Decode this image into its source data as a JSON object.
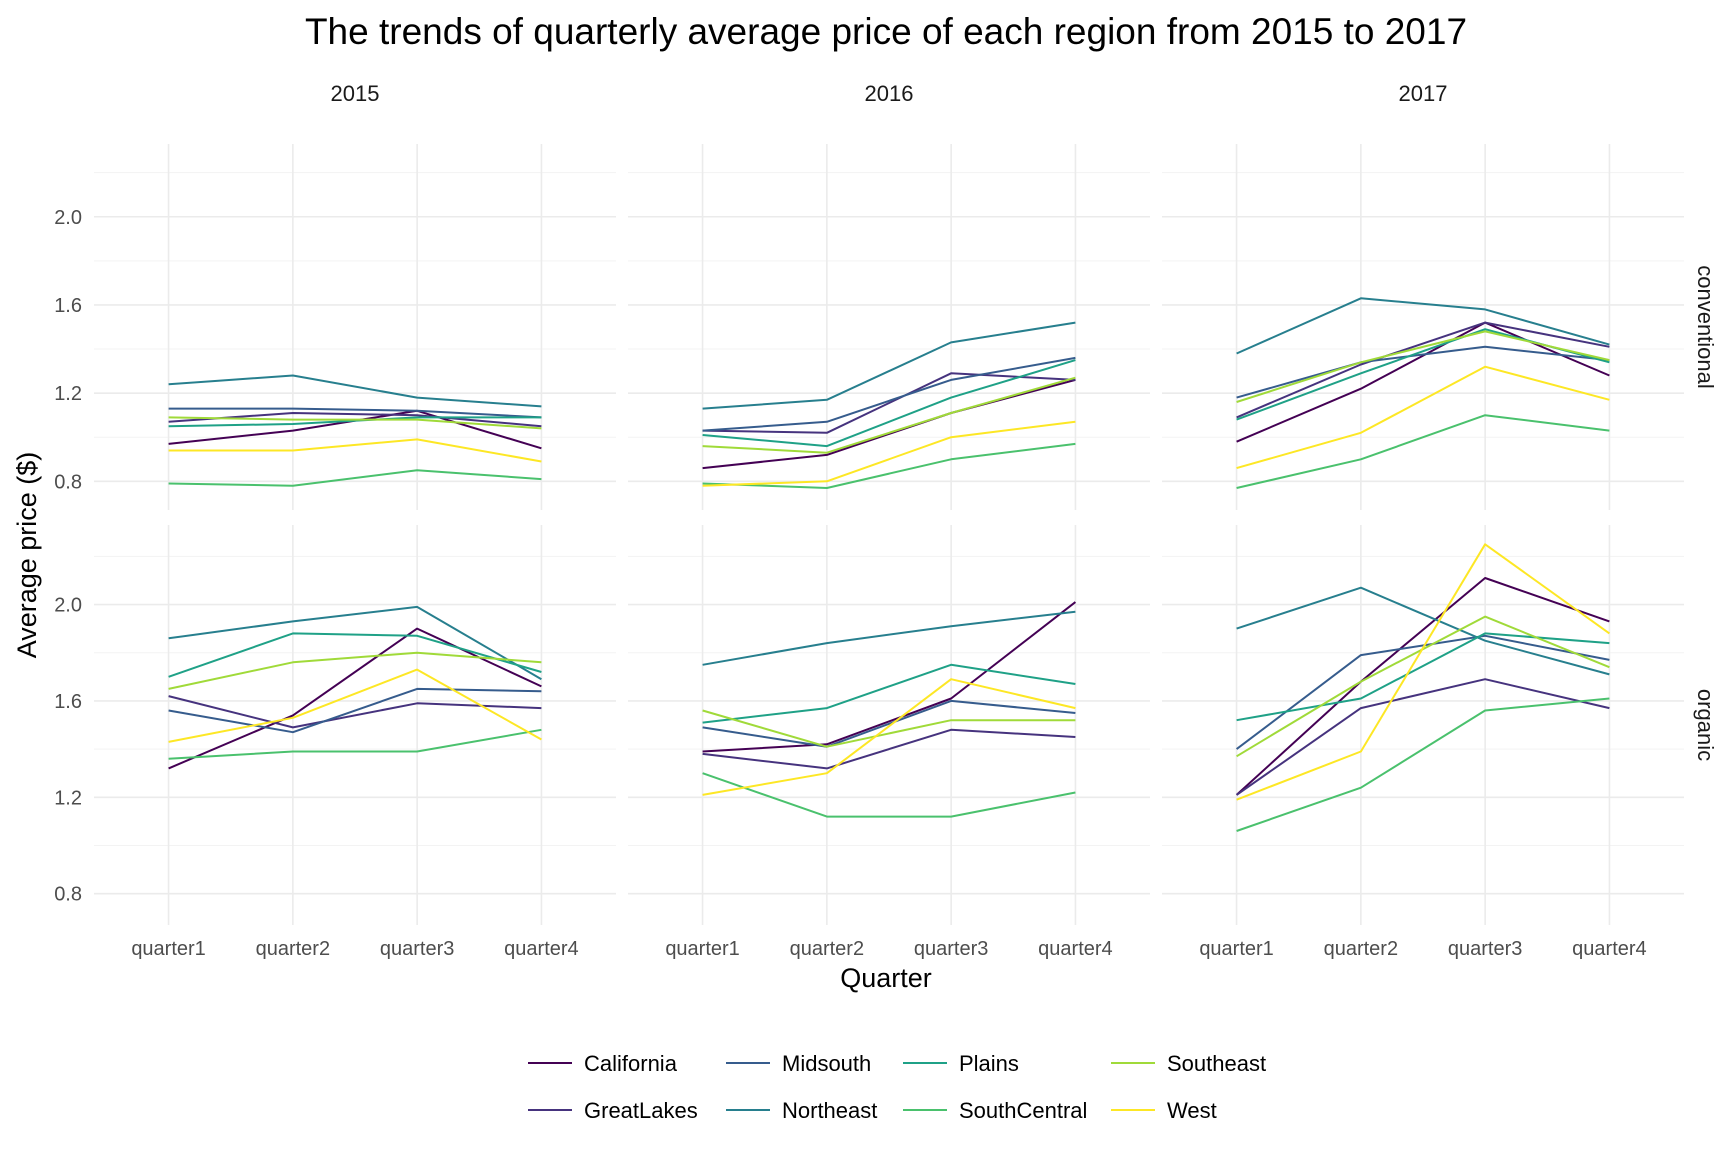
{
  "chart_data": {
    "type": "line",
    "title": "The trends of quarterly average price of each region from 2015 to 2017",
    "xlabel": "Quarter",
    "ylabel": "Average price ($)",
    "x_categories": [
      "quarter1",
      "quarter2",
      "quarter3",
      "quarter4"
    ],
    "facet_columns": [
      "2015",
      "2016",
      "2017"
    ],
    "facet_rows": [
      "conventional",
      "organic"
    ],
    "y_ticks": [
      "0.8",
      "1.2",
      "1.6",
      "2.0"
    ],
    "ylim": [
      0.67,
      2.33
    ],
    "grid": true,
    "legend_position": "bottom",
    "regions": [
      {
        "name": "California",
        "color": "#440154"
      },
      {
        "name": "GreatLakes",
        "color": "#46337e"
      },
      {
        "name": "Midsouth",
        "color": "#365c8d"
      },
      {
        "name": "Northeast",
        "color": "#277f8e"
      },
      {
        "name": "Plains",
        "color": "#1fa187"
      },
      {
        "name": "SouthCentral",
        "color": "#4ac16d"
      },
      {
        "name": "Southeast",
        "color": "#a0da39"
      },
      {
        "name": "West",
        "color": "#fde725"
      }
    ],
    "panels": [
      {
        "year": "2015",
        "type": "conventional",
        "series": {
          "California": [
            0.97,
            1.03,
            1.12,
            0.95
          ],
          "GreatLakes": [
            1.07,
            1.11,
            1.1,
            1.05
          ],
          "Midsouth": [
            1.13,
            1.13,
            1.12,
            1.09
          ],
          "Northeast": [
            1.24,
            1.28,
            1.18,
            1.14
          ],
          "Plains": [
            1.05,
            1.06,
            1.09,
            1.09
          ],
          "SouthCentral": [
            0.79,
            0.78,
            0.85,
            0.81
          ],
          "Southeast": [
            1.09,
            1.08,
            1.08,
            1.04
          ],
          "West": [
            0.94,
            0.94,
            0.99,
            0.89
          ]
        }
      },
      {
        "year": "2016",
        "type": "conventional",
        "series": {
          "California": [
            0.86,
            0.92,
            1.11,
            1.26
          ],
          "GreatLakes": [
            1.03,
            1.02,
            1.29,
            1.26
          ],
          "Midsouth": [
            1.03,
            1.07,
            1.26,
            1.36
          ],
          "Northeast": [
            1.13,
            1.17,
            1.43,
            1.52
          ],
          "Plains": [
            1.01,
            0.96,
            1.18,
            1.35
          ],
          "SouthCentral": [
            0.79,
            0.77,
            0.9,
            0.97
          ],
          "Southeast": [
            0.96,
            0.93,
            1.11,
            1.27
          ],
          "West": [
            0.78,
            0.8,
            1.0,
            1.07
          ]
        }
      },
      {
        "year": "2017",
        "type": "conventional",
        "series": {
          "California": [
            0.98,
            1.22,
            1.52,
            1.28
          ],
          "GreatLakes": [
            1.09,
            1.33,
            1.52,
            1.41
          ],
          "Midsouth": [
            1.18,
            1.34,
            1.41,
            1.35
          ],
          "Northeast": [
            1.38,
            1.63,
            1.58,
            1.42
          ],
          "Plains": [
            1.08,
            1.29,
            1.49,
            1.34
          ],
          "SouthCentral": [
            0.77,
            0.9,
            1.1,
            1.03
          ],
          "Southeast": [
            1.16,
            1.34,
            1.48,
            1.35
          ],
          "West": [
            0.86,
            1.02,
            1.32,
            1.17
          ]
        }
      },
      {
        "year": "2015",
        "type": "organic",
        "series": {
          "California": [
            1.32,
            1.54,
            1.9,
            1.66
          ],
          "GreatLakes": [
            1.62,
            1.49,
            1.59,
            1.57
          ],
          "Midsouth": [
            1.56,
            1.47,
            1.65,
            1.64
          ],
          "Northeast": [
            1.86,
            1.93,
            1.99,
            1.69
          ],
          "Plains": [
            1.7,
            1.88,
            1.87,
            1.72
          ],
          "SouthCentral": [
            1.36,
            1.39,
            1.39,
            1.48
          ],
          "Southeast": [
            1.65,
            1.76,
            1.8,
            1.76
          ],
          "West": [
            1.43,
            1.53,
            1.73,
            1.44
          ]
        }
      },
      {
        "year": "2016",
        "type": "organic",
        "series": {
          "California": [
            1.39,
            1.42,
            1.61,
            2.01
          ],
          "GreatLakes": [
            1.38,
            1.32,
            1.48,
            1.45
          ],
          "Midsouth": [
            1.49,
            1.41,
            1.6,
            1.55
          ],
          "Northeast": [
            1.75,
            1.84,
            1.91,
            1.97
          ],
          "Plains": [
            1.51,
            1.57,
            1.75,
            1.67
          ],
          "SouthCentral": [
            1.3,
            1.12,
            1.12,
            1.22
          ],
          "Southeast": [
            1.56,
            1.41,
            1.52,
            1.52
          ],
          "West": [
            1.21,
            1.3,
            1.69,
            1.57
          ]
        }
      },
      {
        "year": "2017",
        "type": "organic",
        "series": {
          "California": [
            1.21,
            1.68,
            2.11,
            1.93
          ],
          "GreatLakes": [
            1.21,
            1.57,
            1.69,
            1.57
          ],
          "Midsouth": [
            1.4,
            1.79,
            1.87,
            1.77
          ],
          "Northeast": [
            1.9,
            2.07,
            1.85,
            1.71
          ],
          "Plains": [
            1.52,
            1.61,
            1.88,
            1.84
          ],
          "SouthCentral": [
            1.06,
            1.24,
            1.56,
            1.61
          ],
          "Southeast": [
            1.37,
            1.68,
            1.95,
            1.74
          ],
          "West": [
            1.19,
            1.39,
            2.25,
            1.88
          ]
        }
      }
    ]
  }
}
